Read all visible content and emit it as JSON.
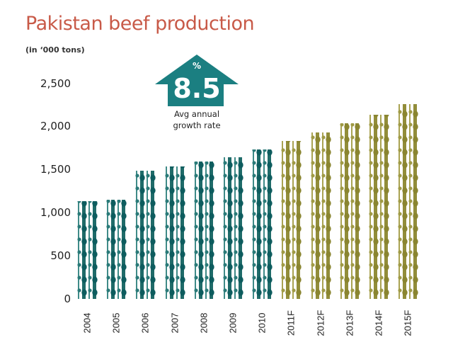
{
  "header": {
    "title": "Pakistan beef production",
    "subtitle": "(in ‘000 tons)"
  },
  "callout": {
    "icon": "up-arrow-icon",
    "percent_sign": "%",
    "value": "8.5",
    "caption_line1": "Avg annual",
    "caption_line2": "growth rate",
    "color": "#1b7f81"
  },
  "colors": {
    "title": "#c85a48",
    "actual_bars": "#0d5c5e",
    "forecast_bars": "#8a8530"
  },
  "y_axis": {
    "ticks": [
      "0",
      "500",
      "1,000",
      "1,500",
      "2,000",
      "2,500"
    ]
  },
  "chart_data": {
    "type": "bar",
    "title": "Pakistan beef production",
    "subtitle": "(in '000 tons)",
    "xlabel": "",
    "ylabel": "'000 tons",
    "ylim": [
      0,
      2500
    ],
    "yticks": [
      0,
      500,
      1000,
      1500,
      2000,
      2500
    ],
    "grid": false,
    "categories": [
      "2004",
      "2005",
      "2006",
      "2007",
      "2008",
      "2009",
      "2010",
      "2011F",
      "2012F",
      "2013F",
      "2014F",
      "2015F"
    ],
    "values": [
      1130,
      1150,
      1480,
      1530,
      1590,
      1640,
      1730,
      1830,
      1930,
      2030,
      2130,
      2250
    ],
    "series_type": [
      "actual",
      "actual",
      "actual",
      "actual",
      "actual",
      "actual",
      "actual",
      "forecast",
      "forecast",
      "forecast",
      "forecast",
      "forecast"
    ],
    "annotations": [
      {
        "text": "% 8.5 Avg annual growth rate",
        "shape": "up-arrow"
      }
    ],
    "legend": null
  }
}
